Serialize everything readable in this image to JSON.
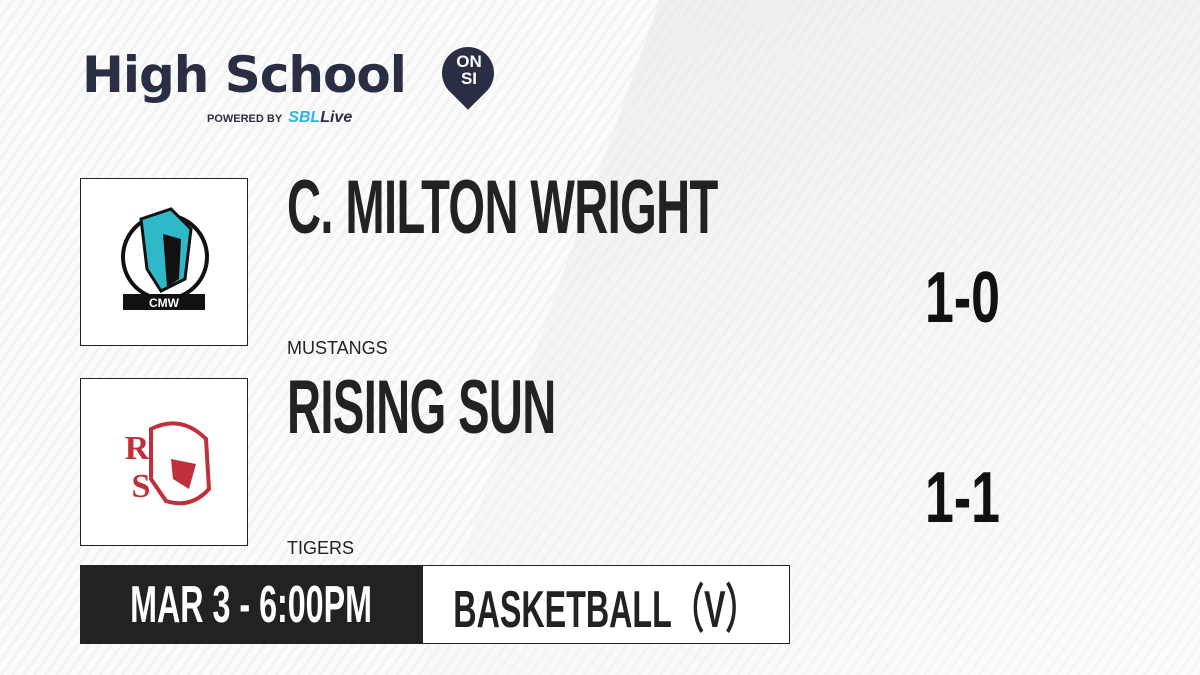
{
  "brand": {
    "title": "High School",
    "badge_line1": "ON",
    "badge_line2": "SI",
    "powered_by": "POWERED BY",
    "partner_a": "SBL",
    "partner_b": "ive",
    "accent": "#2db4e8",
    "brand_color": "#2a2e45"
  },
  "teams": [
    {
      "name": "C. MILTON WRIGHT",
      "mascot": "MUSTANGS",
      "record": "1-0",
      "logo_text": "CMW",
      "logo_color": "#2fb8c8"
    },
    {
      "name": "RISING SUN",
      "mascot": "TIGERS",
      "record": "1-1",
      "logo_text": "RS",
      "logo_color": "#c0303a"
    }
  ],
  "game": {
    "datetime": "MAR 3 - 6:00PM",
    "sport": "BASKETBALL（V）"
  }
}
